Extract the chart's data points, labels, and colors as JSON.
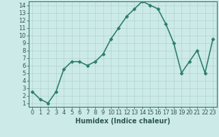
{
  "x": [
    0,
    1,
    2,
    3,
    4,
    5,
    6,
    7,
    8,
    9,
    10,
    11,
    12,
    13,
    14,
    15,
    16,
    17,
    18,
    19,
    20,
    21,
    22,
    23
  ],
  "y": [
    2.5,
    1.5,
    1.0,
    2.5,
    5.5,
    6.5,
    6.5,
    6.0,
    6.5,
    7.5,
    9.5,
    11.0,
    12.5,
    13.5,
    14.5,
    14.0,
    13.5,
    11.5,
    9.0,
    5.0,
    6.5,
    8.0,
    5.0,
    9.5
  ],
  "line_color": "#2e7d6e",
  "marker": "D",
  "marker_size": 2.5,
  "bg_color": "#cceae8",
  "grid_color": "#aed4d0",
  "xlabel": "Humidex (Indice chaleur)",
  "xlim": [
    -0.5,
    23.5
  ],
  "ylim": [
    0.5,
    14.5
  ],
  "xticks": [
    0,
    1,
    2,
    3,
    4,
    5,
    6,
    7,
    8,
    9,
    10,
    11,
    12,
    13,
    14,
    15,
    16,
    17,
    18,
    19,
    20,
    21,
    22,
    23
  ],
  "yticks": [
    1,
    2,
    3,
    4,
    5,
    6,
    7,
    8,
    9,
    10,
    11,
    12,
    13,
    14
  ],
  "xlabel_fontsize": 7,
  "tick_fontsize": 6,
  "line_width": 1.2,
  "spine_color": "#3a7070"
}
